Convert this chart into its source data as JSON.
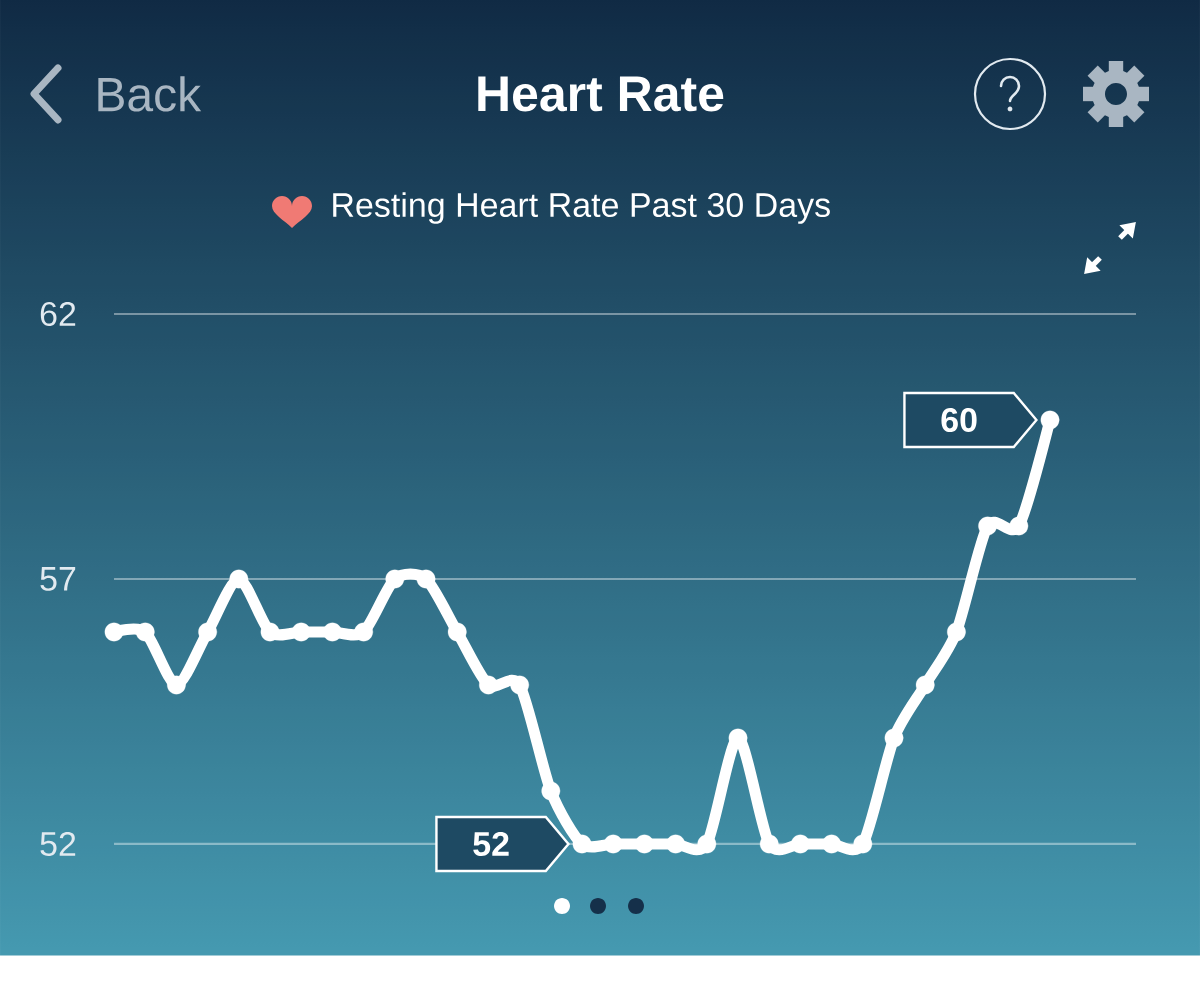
{
  "chart_data": {
    "type": "line",
    "title": "Heart Rate",
    "subtitle": "Resting Heart Rate Past 30 Days",
    "annotations": [
      "Back"
    ],
    "categories": [
      null,
      null,
      null,
      null,
      null,
      null,
      null,
      null,
      null,
      null,
      null,
      null,
      null,
      null,
      null,
      null,
      null,
      null,
      null,
      null,
      null,
      null,
      null,
      null,
      null,
      null,
      null,
      null,
      null,
      null,
      null
    ],
    "values": [
      56,
      56,
      55,
      56,
      57,
      56,
      56,
      56,
      56,
      57,
      57,
      56,
      55,
      55,
      53,
      52,
      52,
      52,
      52,
      52,
      54,
      52,
      52,
      52,
      52,
      54,
      55,
      56,
      58,
      58,
      60
    ],
    "value_labels": [
      null,
      null,
      null,
      null,
      null,
      null,
      null,
      null,
      null,
      null,
      null,
      null,
      null,
      null,
      null,
      "52",
      null,
      null,
      null,
      null,
      null,
      null,
      null,
      null,
      null,
      null,
      null,
      null,
      null,
      null,
      "60"
    ],
    "color": "#ffffff",
    "ylim": [
      52,
      62
    ],
    "yticks": [
      52,
      57,
      62
    ],
    "grid": "y",
    "tick_labels": "y",
    "marker": "circle",
    "line_style": "solid"
  }
}
